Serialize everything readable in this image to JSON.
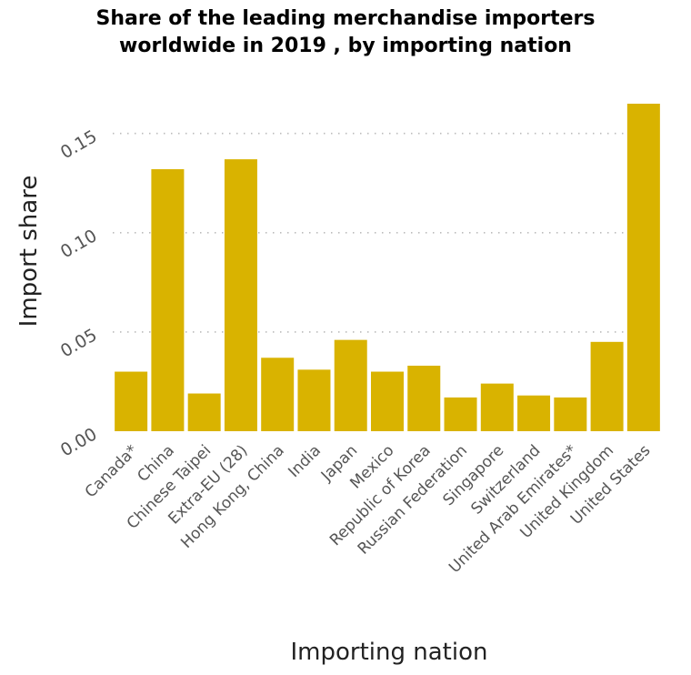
{
  "chart_data": {
    "type": "bar",
    "title_lines": [
      "Share of the leading merchandise importers",
      "worldwide in 2019 , by importing nation"
    ],
    "xlabel": "Importing nation",
    "ylabel": "Import share",
    "categories": [
      "Canada*",
      "China",
      "Chinese Taipei",
      "Extra-EU (28)",
      "Hong Kong, China",
      "India",
      "Japan",
      "Mexico",
      "Republic of Korea",
      "Russian Federation",
      "Singapore",
      "Switzerland",
      "United Arab Emirates*",
      "United Kingdom",
      "United States"
    ],
    "values": [
      0.03,
      0.132,
      0.019,
      0.137,
      0.037,
      0.031,
      0.046,
      0.03,
      0.033,
      0.017,
      0.024,
      0.018,
      0.017,
      0.045,
      0.165
    ],
    "yticks": [
      "0.00",
      "0.05",
      "0.10",
      "0.15"
    ],
    "ylim": [
      0,
      0.165
    ],
    "grid": "horizontal dotted",
    "colors": {
      "bar": "#d9b300",
      "grid": "#bbbbbb"
    }
  }
}
